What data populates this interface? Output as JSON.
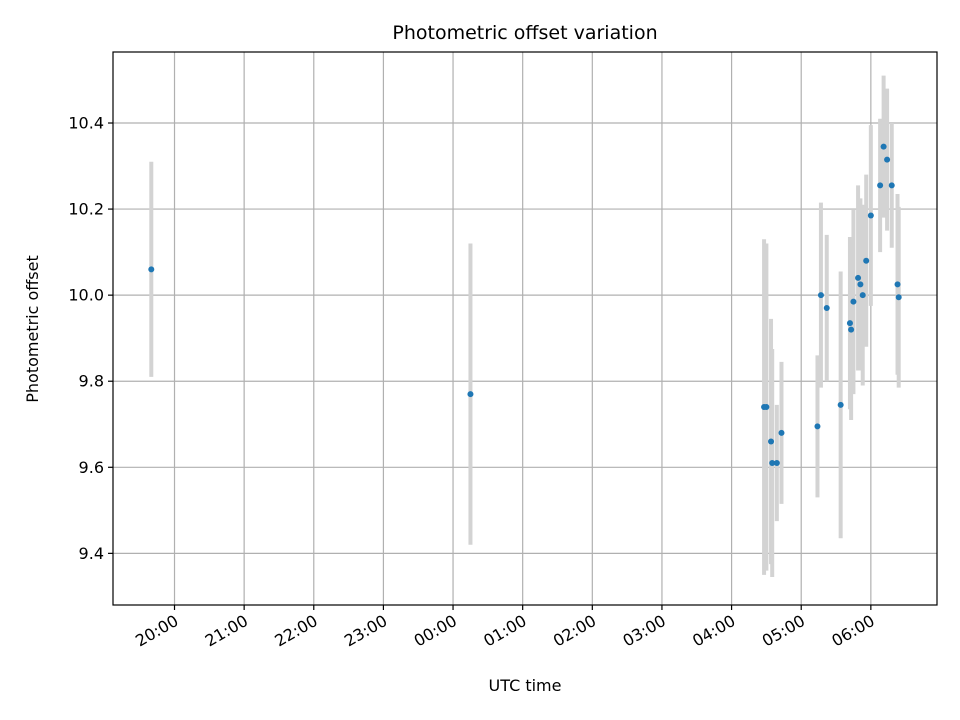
{
  "chart_data": {
    "type": "scatter",
    "title": "Photometric offset variation",
    "xlabel": "UTC time",
    "ylabel": "Photometric offset",
    "x_axis": "time",
    "xlim": [
      "19:07",
      "06:57"
    ],
    "ylim": [
      9.28,
      10.565
    ],
    "grid": true,
    "marker_color": "#1f77b4",
    "errorbar_color": "#d3d3d3",
    "x_ticks": [
      "20:00",
      "21:00",
      "22:00",
      "23:00",
      "00:00",
      "01:00",
      "02:00",
      "03:00",
      "04:00",
      "05:00",
      "06:00"
    ],
    "y_ticks": [
      "9.4",
      "9.6",
      "9.8",
      "10.0",
      "10.2",
      "10.4"
    ],
    "points": [
      {
        "t": "19:40",
        "y": 10.06,
        "err": 0.25
      },
      {
        "t": "00:15",
        "y": 9.77,
        "err": 0.35
      },
      {
        "t": "04:28",
        "y": 9.74,
        "err": 0.39
      },
      {
        "t": "04:30",
        "y": 9.74,
        "err": 0.38
      },
      {
        "t": "04:34",
        "y": 9.66,
        "err": 0.285
      },
      {
        "t": "04:35",
        "y": 9.61,
        "err": 0.265
      },
      {
        "t": "04:39",
        "y": 9.61,
        "err": 0.135
      },
      {
        "t": "04:43",
        "y": 9.68,
        "err": 0.165
      },
      {
        "t": "05:14",
        "y": 9.695,
        "err": 0.165
      },
      {
        "t": "05:17",
        "y": 10.0,
        "err": 0.215
      },
      {
        "t": "05:22",
        "y": 9.97,
        "err": 0.17
      },
      {
        "t": "05:34",
        "y": 9.745,
        "err": 0.31
      },
      {
        "t": "05:42",
        "y": 9.935,
        "err": 0.2
      },
      {
        "t": "05:43",
        "y": 9.92,
        "err": 0.21
      },
      {
        "t": "05:45",
        "y": 9.985,
        "err": 0.215
      },
      {
        "t": "05:49",
        "y": 10.04,
        "err": 0.215
      },
      {
        "t": "05:51",
        "y": 10.025,
        "err": 0.2
      },
      {
        "t": "05:53",
        "y": 10.0,
        "err": 0.21
      },
      {
        "t": "05:56",
        "y": 10.08,
        "err": 0.2
      },
      {
        "t": "06:00",
        "y": 10.185,
        "err": 0.21
      },
      {
        "t": "06:08",
        "y": 10.255,
        "err": 0.155
      },
      {
        "t": "06:11",
        "y": 10.345,
        "err": 0.165
      },
      {
        "t": "06:14",
        "y": 10.315,
        "err": 0.165
      },
      {
        "t": "06:18",
        "y": 10.255,
        "err": 0.145
      },
      {
        "t": "06:23",
        "y": 10.025,
        "err": 0.21
      },
      {
        "t": "06:24",
        "y": 9.995,
        "err": 0.21
      }
    ]
  }
}
